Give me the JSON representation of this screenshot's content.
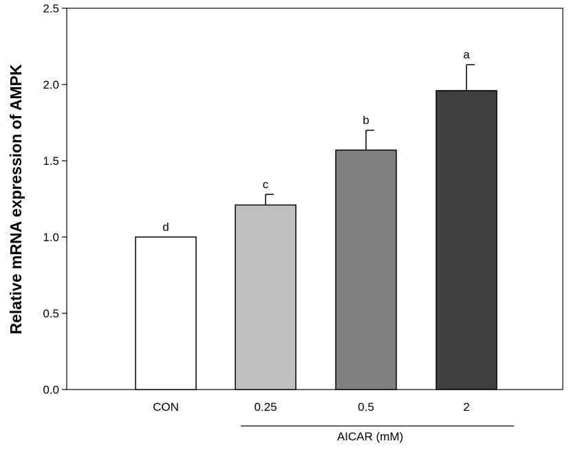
{
  "chart_data": {
    "type": "bar",
    "title": "",
    "xlabel": "",
    "ylabel": "Relative mRNA expression of AMPK",
    "categories": [
      "CON",
      "0.25",
      "0.5",
      "2"
    ],
    "values": [
      1.0,
      1.21,
      1.57,
      1.96
    ],
    "errors": [
      0.0,
      0.07,
      0.13,
      0.17
    ],
    "significance_labels": [
      "d",
      "c",
      "b",
      "a"
    ],
    "bar_colors": [
      "#ffffff",
      "#c0c0c0",
      "#808080",
      "#404040"
    ],
    "ylim": [
      0,
      2.5
    ],
    "yticks": [
      0.0,
      0.5,
      1.0,
      1.5,
      2.0,
      2.5
    ],
    "ytick_labels": [
      "0.0",
      "0.5",
      "1.0",
      "1.5",
      "2.0",
      "2.5"
    ],
    "group_label": "AICAR (mM)",
    "grid": false,
    "legend": "none"
  }
}
